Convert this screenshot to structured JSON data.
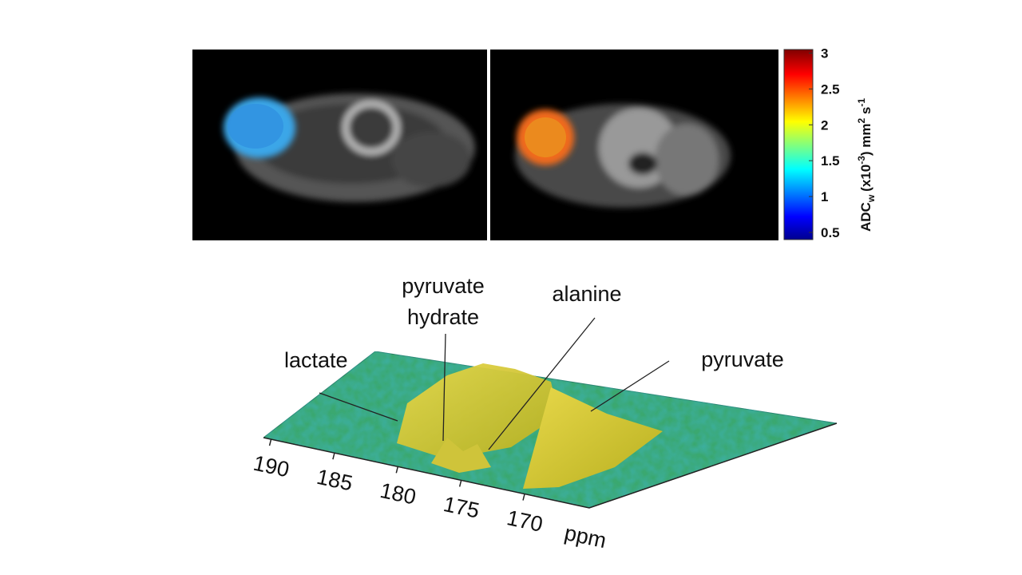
{
  "colorbar": {
    "label": {
      "main": "ADC",
      "subscript": "w",
      "prefix": "(x10",
      "exponent": "-3",
      "unit": ") mm",
      "unit_exponent": "2",
      "unit2": " s",
      "unit2_exponent": "-1"
    },
    "lim": [
      0.4,
      3.05
    ],
    "ticks": [
      0.5,
      1,
      1.5,
      2,
      2.5,
      3
    ]
  },
  "spectrum": {
    "xlim": [
      190.6,
      164.9
    ],
    "xticks": [
      190,
      185,
      180,
      175,
      170
    ],
    "x_unit": "ppm",
    "annotations": {
      "lactate": "lactate",
      "pyruvate_hydrate": [
        "pyruvate",
        "hydrate"
      ],
      "alanine": "alanine",
      "pyruvate": "pyruvate"
    }
  }
}
